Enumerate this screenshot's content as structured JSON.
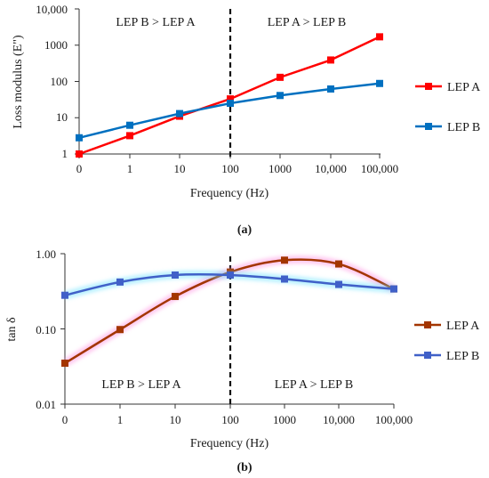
{
  "charts": [
    {
      "panel_label": "(a)",
      "chart_data": {
        "type": "line",
        "categories": [
          "0",
          "1",
          "10",
          "100",
          "1000",
          "10,000",
          "100,000"
        ],
        "series": [
          {
            "name": "LEP A",
            "color": "#ff0000",
            "values": [
              1,
              3.2,
              11,
              33,
              130,
              390,
              1700
            ]
          },
          {
            "name": "LEP B",
            "color": "#0070c0",
            "values": [
              2.8,
              6.2,
              13,
              25,
              41,
              62,
              88
            ]
          }
        ],
        "xlabel": "Frequency (Hz)",
        "ylabel": "Loss modulus (E\")",
        "yscale": "log",
        "ylim": [
          1,
          10000
        ],
        "y_ticks": [
          1,
          10,
          100,
          1000,
          10000
        ],
        "y_tick_labels": [
          "1",
          "10",
          "100",
          "1000",
          "10,000"
        ],
        "divider_at_category": "100",
        "annotations": [
          "LEP B > LEP A",
          "LEP A > LEP B"
        ],
        "legend_position": "right",
        "grid": false
      }
    },
    {
      "panel_label": "(b)",
      "chart_data": {
        "type": "line",
        "categories": [
          "0",
          "1",
          "10",
          "100",
          "1000",
          "10,000",
          "100,000"
        ],
        "series": [
          {
            "name": "LEP A",
            "color": "#a33500",
            "values": [
              0.035,
              0.098,
              0.27,
              0.57,
              0.82,
              0.73,
              0.34
            ]
          },
          {
            "name": "LEP B",
            "color": "#4060c8",
            "values": [
              0.28,
              0.42,
              0.52,
              0.52,
              0.46,
              0.39,
              0.34
            ]
          }
        ],
        "xlabel": "Frequency (Hz)",
        "ylabel": "tan δ",
        "yscale": "log",
        "ylim": [
          0.01,
          1
        ],
        "y_ticks": [
          0.01,
          0.1,
          1
        ],
        "y_tick_labels": [
          "0.01",
          "0.10",
          "1.00"
        ],
        "divider_at_category": "100",
        "annotations": [
          "LEP B > LEP A",
          "LEP A > LEP B"
        ],
        "legend_position": "right",
        "grid": false
      }
    }
  ]
}
